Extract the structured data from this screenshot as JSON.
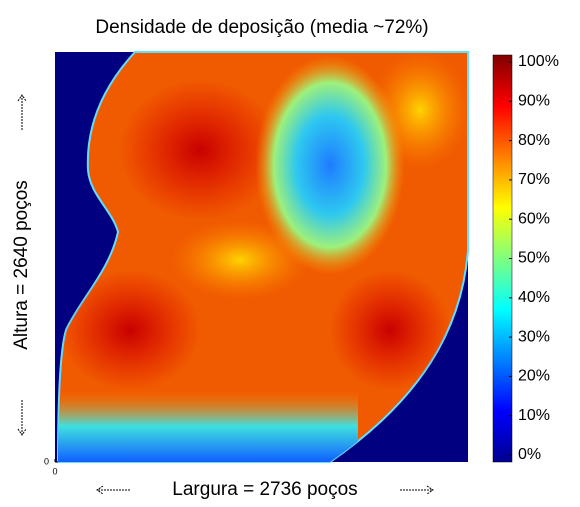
{
  "chart_data": {
    "type": "heatmap",
    "title": "Densidade de deposição (media ~72%)",
    "x_label": "Largura = 2736 poços",
    "y_label": "Altura = 2640 poços",
    "xlim": [
      0,
      2736
    ],
    "ylim": [
      0,
      2640
    ],
    "xticks": [
      0
    ],
    "yticks": [
      0
    ],
    "colorbar": {
      "lim": [
        0,
        100
      ],
      "ticks": [
        {
          "value": 0,
          "label": "0%"
        },
        {
          "value": 10,
          "label": "10%"
        },
        {
          "value": 20,
          "label": "20%"
        },
        {
          "value": 30,
          "label": "30%"
        },
        {
          "value": 40,
          "label": "40%"
        },
        {
          "value": 50,
          "label": "50%"
        },
        {
          "value": 60,
          "label": "60%"
        },
        {
          "value": 70,
          "label": "70%"
        },
        {
          "value": 80,
          "label": "80%"
        },
        {
          "value": 90,
          "label": "90%"
        },
        {
          "value": 100,
          "label": "100%"
        }
      ]
    }
  }
}
